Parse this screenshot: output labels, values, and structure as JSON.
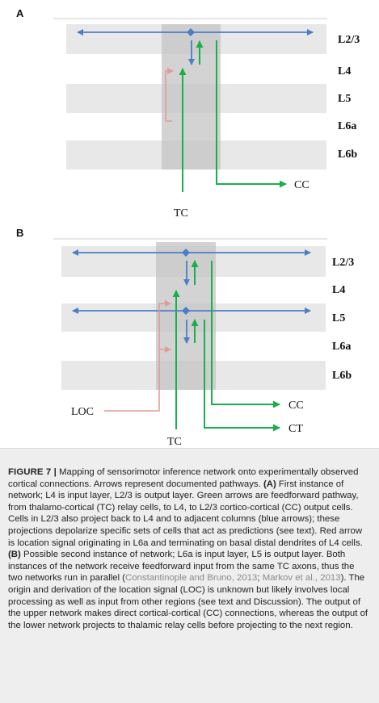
{
  "panel_a": {
    "label": "A",
    "layers": [
      "L2/3",
      "L4",
      "L5",
      "L6a",
      "L6b"
    ],
    "outputs": {
      "cc": "CC"
    },
    "input": "TC"
  },
  "panel_b": {
    "label": "B",
    "layers": [
      "L2/3",
      "L4",
      "L5",
      "L6a",
      "L6b"
    ],
    "outputs": {
      "cc": "CC",
      "ct": "CT"
    },
    "input": "TC",
    "location": "LOC"
  },
  "colors": {
    "blue": "#4a7ec7",
    "green": "#19b04b",
    "red": "#e29a98",
    "band": "#e8e8e8",
    "column": "#c4c4c4"
  },
  "caption": {
    "figure_label": "FIGURE 7 |",
    "s1": " Mapping of sensorimotor inference network onto experimentally observed cortical connections. Arrows represent documented pathways. ",
    "panel_a_ref": "(A)",
    "s2": " First instance of network; L4 is input layer, L2/3 is output layer. Green arrows are feedforward pathway, from thalamo-cortical (TC) relay cells, to L4, to L2/3 cortico-cortical (CC) output cells. Cells in L2/3 also project back to L4 and to adjacent columns (blue arrows); these projections depolarize specific sets of cells that act as predictions (see text). Red arrow is location signal originating in L6a and terminating on basal distal dendrites of L4 cells. ",
    "panel_b_ref": "(B)",
    "s3": " Possible second instance of network; L6a is input layer, L5 is output layer. Both instances of the network receive feedforward input from the same TC axons, thus the two networks run in parallel (",
    "cite1": "Constantinople and Bruno, 2013",
    "sep": "; ",
    "cite2": "Markov et al., 2013",
    "s4": "). The origin and derivation of the location signal (LOC) is unknown but likely involves local processing as well as input from other regions (see text and Discussion). The output of the upper network makes direct cortical-cortical (CC) connections, whereas the output of the lower network projects to thalamic relay cells before projecting to the next region."
  }
}
